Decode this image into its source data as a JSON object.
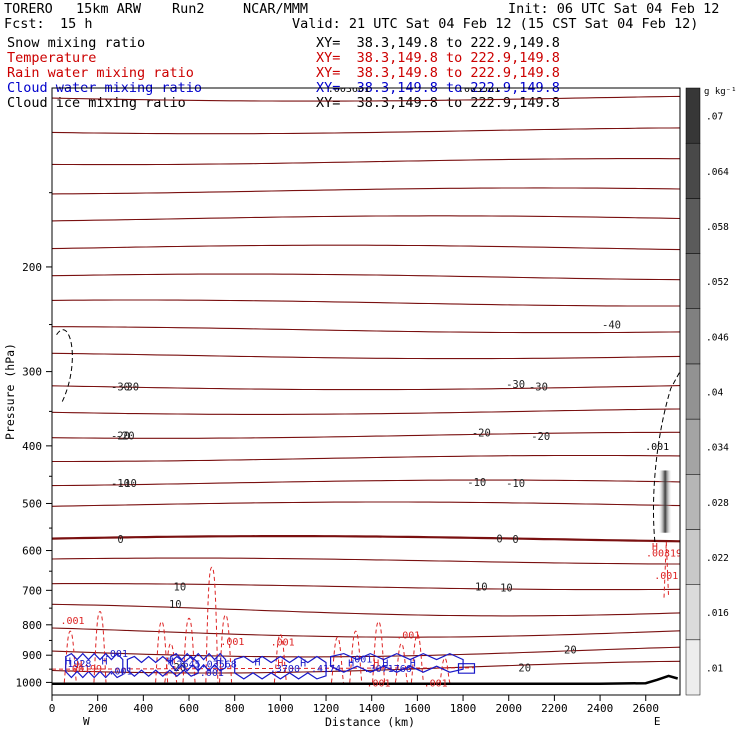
{
  "header": {
    "model": "TORERO",
    "resolution": "15km ARW",
    "run": "Run2",
    "agency": "NCAR/MMM",
    "init": "Init: 06 UTC Sat 04 Feb 12",
    "fcst_label": "Fcst:",
    "fcst_value": "15 h",
    "valid": "Valid: 21 UTC Sat 04 Feb 12 (15 CST Sat 04 Feb 12)"
  },
  "fields": [
    {
      "name": "Snow mixing ratio",
      "color": "#000000",
      "xy": "XY=  38.3,149.8 to 222.9,149.8"
    },
    {
      "name": "Temperature",
      "color": "#cc0000",
      "xy": "XY=  38.3,149.8 to 222.9,149.8"
    },
    {
      "name": "Rain water mixing ratio",
      "color": "#cc0000",
      "xy": "XY=  38.3,149.8 to 222.9,149.8"
    },
    {
      "name": "Cloud water mixing ratio",
      "color": "#0000cc",
      "xy": "XY=  38.3,149.8 to 222.9,149.8"
    },
    {
      "name": "Cloud ice mixing ratio",
      "color": "#000000",
      "xy": "XY=  38.3,149.8 to 222.9,149.8"
    }
  ],
  "colors": {
    "temperature": "#7a1010",
    "freezing_line": "#7a1010",
    "rain": "#dd2222",
    "cloud_water": "#1818c8",
    "snow": "#000000",
    "terrain": "#000000"
  },
  "chart_data": {
    "type": "cross-section",
    "xlabel": "Distance (km)",
    "ylabel": "Pressure (hPa)",
    "xlim": [
      0,
      2750
    ],
    "ylim": [
      1050,
      100
    ],
    "yscale": "log",
    "x_ticks": [
      0,
      200,
      400,
      600,
      800,
      1000,
      1200,
      1400,
      1600,
      1800,
      2000,
      2200,
      2400,
      2600
    ],
    "y_ticks": [
      200,
      300,
      400,
      500,
      600,
      700,
      800,
      900,
      1000
    ],
    "x_end_labels": [
      "W",
      "E"
    ],
    "colorbar": {
      "unit": "g kg⁻¹",
      "ticks": [
        ".01",
        ".016",
        ".022",
        ".028",
        ".034",
        ".04",
        ".046",
        ".052",
        ".058",
        ".064",
        ".07"
      ]
    },
    "temperature_isotherms": [
      {
        "p": 104
      },
      {
        "p": 118
      },
      {
        "p": 133
      },
      {
        "p": 149
      },
      {
        "p": 166
      },
      {
        "p": 186
      },
      {
        "p": 208
      },
      {
        "p": 230
      },
      {
        "p": 255
      },
      {
        "p": 282
      },
      {
        "p": 318,
        "label": "-30"
      },
      {
        "p": 350
      },
      {
        "p": 384,
        "label": "-20"
      },
      {
        "p": 420
      },
      {
        "p": 462,
        "label": "-10"
      },
      {
        "p": 503
      },
      {
        "p": 574,
        "label": "0"
      },
      {
        "p": 625
      },
      {
        "p": 690,
        "label": "10"
      },
      {
        "p": 755
      },
      {
        "p": 820
      },
      {
        "p": 885
      },
      {
        "p": 942,
        "label": "20"
      }
    ],
    "isotherm_labels_extra": [
      {
        "x": 2450,
        "p": 250,
        "text": "-40"
      },
      {
        "x": 2030,
        "p": 315,
        "text": "-30"
      },
      {
        "x": 2130,
        "p": 318,
        "text": "-30"
      },
      {
        "x": 1880,
        "p": 380,
        "text": "-20"
      },
      {
        "x": 2140,
        "p": 385,
        "text": "-20"
      },
      {
        "x": 1860,
        "p": 460,
        "text": "-10"
      },
      {
        "x": 2030,
        "p": 462,
        "text": "-10"
      },
      {
        "x": 320,
        "p": 384,
        "text": "-20"
      },
      {
        "x": 330,
        "p": 462,
        "text": "-10"
      },
      {
        "x": 340,
        "p": 318,
        "text": "-30"
      },
      {
        "x": 1960,
        "p": 573,
        "text": "0"
      },
      {
        "x": 2030,
        "p": 574,
        "text": "0"
      },
      {
        "x": 1880,
        "p": 690,
        "text": "10"
      },
      {
        "x": 1990,
        "p": 693,
        "text": "10"
      },
      {
        "x": 540,
        "p": 738,
        "text": "10"
      },
      {
        "x": 2270,
        "p": 880,
        "text": "20"
      },
      {
        "x": 2070,
        "p": 943,
        "text": "20"
      }
    ],
    "rain_labels": [
      {
        "x": 90,
        "p": 785,
        "text": ".001"
      },
      {
        "x": 790,
        "p": 852,
        "text": ".001"
      },
      {
        "x": 1010,
        "p": 853,
        "text": ".001"
      },
      {
        "x": 1560,
        "p": 830,
        "text": ".001"
      },
      {
        "x": 1430,
        "p": 1000,
        "text": ".001"
      },
      {
        "x": 1680,
        "p": 1000,
        "text": ".001"
      },
      {
        "x": 140,
        "p": 945,
        "text": ".00199"
      },
      {
        "x": 2680,
        "p": 605,
        "text": ".00319"
      },
      {
        "x": 2690,
        "p": 660,
        "text": ".001"
      }
    ],
    "cloud_labels": [
      {
        "x": 120,
        "p": 928,
        "text": "1928"
      },
      {
        "x": 585,
        "p": 930,
        "text": ".2645"
      },
      {
        "x": 730,
        "p": 930,
        "text": ".03568"
      },
      {
        "x": 1020,
        "p": 945,
        "text": ".3700"
      },
      {
        "x": 1200,
        "p": 945,
        "text": ".4174"
      },
      {
        "x": 1470,
        "p": 945,
        "text": ".3071766"
      },
      {
        "x": 280,
        "p": 893,
        "text": ".001"
      },
      {
        "x": 700,
        "p": 960,
        "text": ".001"
      },
      {
        "x": 300,
        "p": 955,
        "text": ".001"
      },
      {
        "x": 1350,
        "p": 912,
        "text": ".001"
      }
    ],
    "snow_labels": [
      {
        "x": 2650,
        "p": 400,
        "text": ".001"
      },
      {
        "x": 1300,
        "p": 100,
        "text": ".003601"
      },
      {
        "x": 1870,
        "p": 100,
        "text": ".003501"
      }
    ],
    "h_labels": [
      {
        "x": 70,
        "p": 918,
        "color": "cloud"
      },
      {
        "x": 230,
        "p": 918,
        "color": "cloud"
      },
      {
        "x": 520,
        "p": 918,
        "color": "cloud"
      },
      {
        "x": 730,
        "p": 918,
        "color": "cloud"
      },
      {
        "x": 900,
        "p": 922,
        "color": "cloud"
      },
      {
        "x": 1100,
        "p": 925,
        "color": "cloud"
      },
      {
        "x": 1310,
        "p": 925,
        "color": "cloud"
      },
      {
        "x": 1460,
        "p": 925,
        "color": "cloud"
      },
      {
        "x": 1580,
        "p": 925,
        "color": "cloud"
      },
      {
        "x": 120,
        "p": 932,
        "color": "rain"
      },
      {
        "x": 1000,
        "p": 925,
        "color": "rain"
      },
      {
        "x": 1420,
        "p": 925,
        "color": "rain"
      },
      {
        "x": 2640,
        "p": 590,
        "color": "rain"
      }
    ],
    "terrain": [
      [
        0,
        1005
      ],
      [
        400,
        1005
      ],
      [
        800,
        1005
      ],
      [
        1200,
        1005
      ],
      [
        1600,
        1005
      ],
      [
        2000,
        1005
      ],
      [
        2400,
        1005
      ],
      [
        2600,
        1003
      ],
      [
        2650,
        990
      ],
      [
        2700,
        975
      ],
      [
        2740,
        985
      ]
    ]
  }
}
